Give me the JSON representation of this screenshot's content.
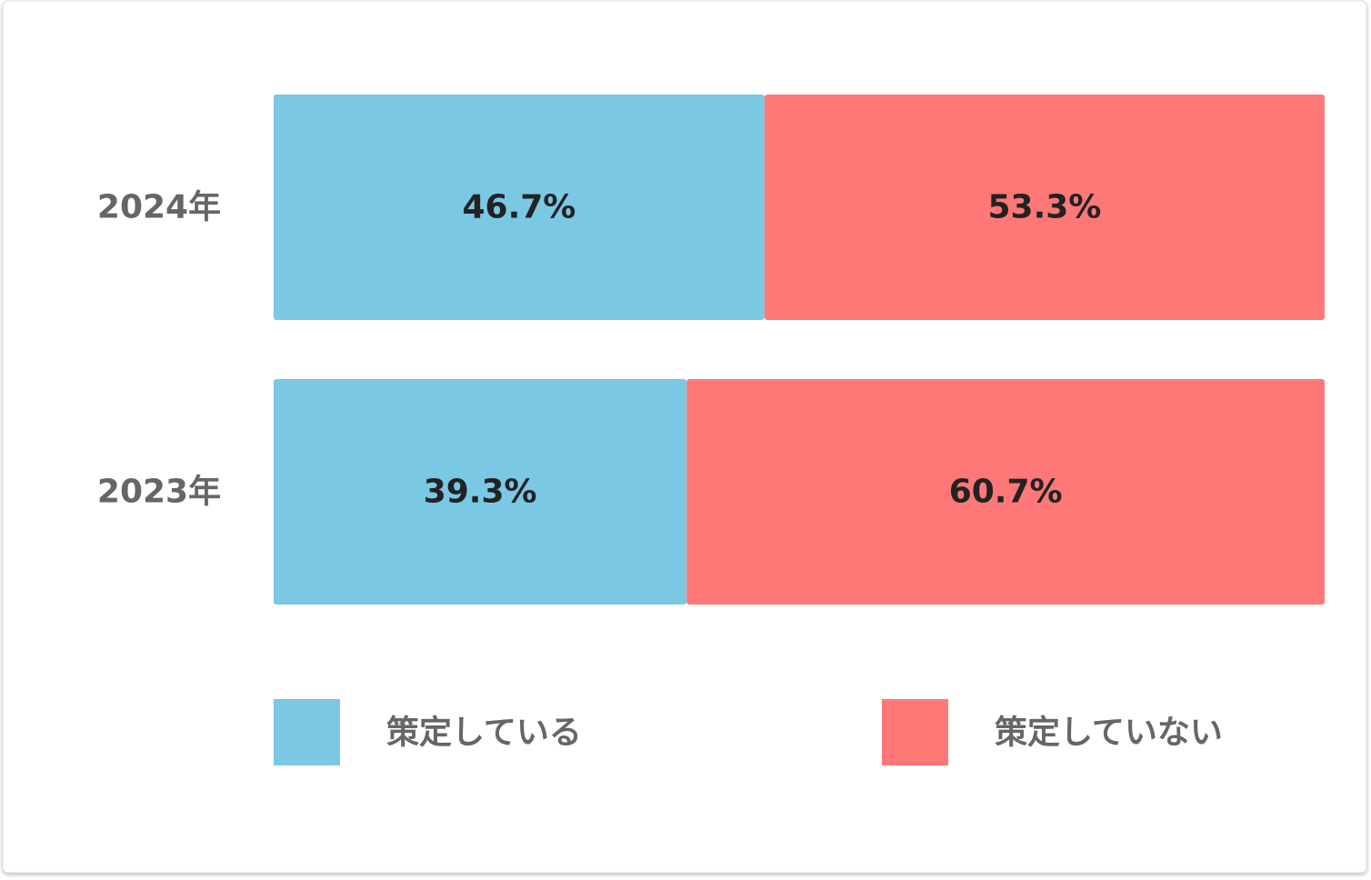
{
  "chart_data": {
    "type": "bar",
    "orientation": "horizontal",
    "stacked": true,
    "categories": [
      "2024年",
      "2023年"
    ],
    "series": [
      {
        "name": "策定している",
        "color": "#7ac8e4",
        "values": [
          46.7,
          39.3
        ],
        "value_labels": [
          "46.7%",
          "39.3%"
        ]
      },
      {
        "name": "策定していない",
        "color": "#ff7878",
        "values": [
          53.3,
          60.7
        ],
        "value_labels": [
          "53.3%",
          "60.7%"
        ]
      }
    ],
    "legend": "bottom"
  }
}
